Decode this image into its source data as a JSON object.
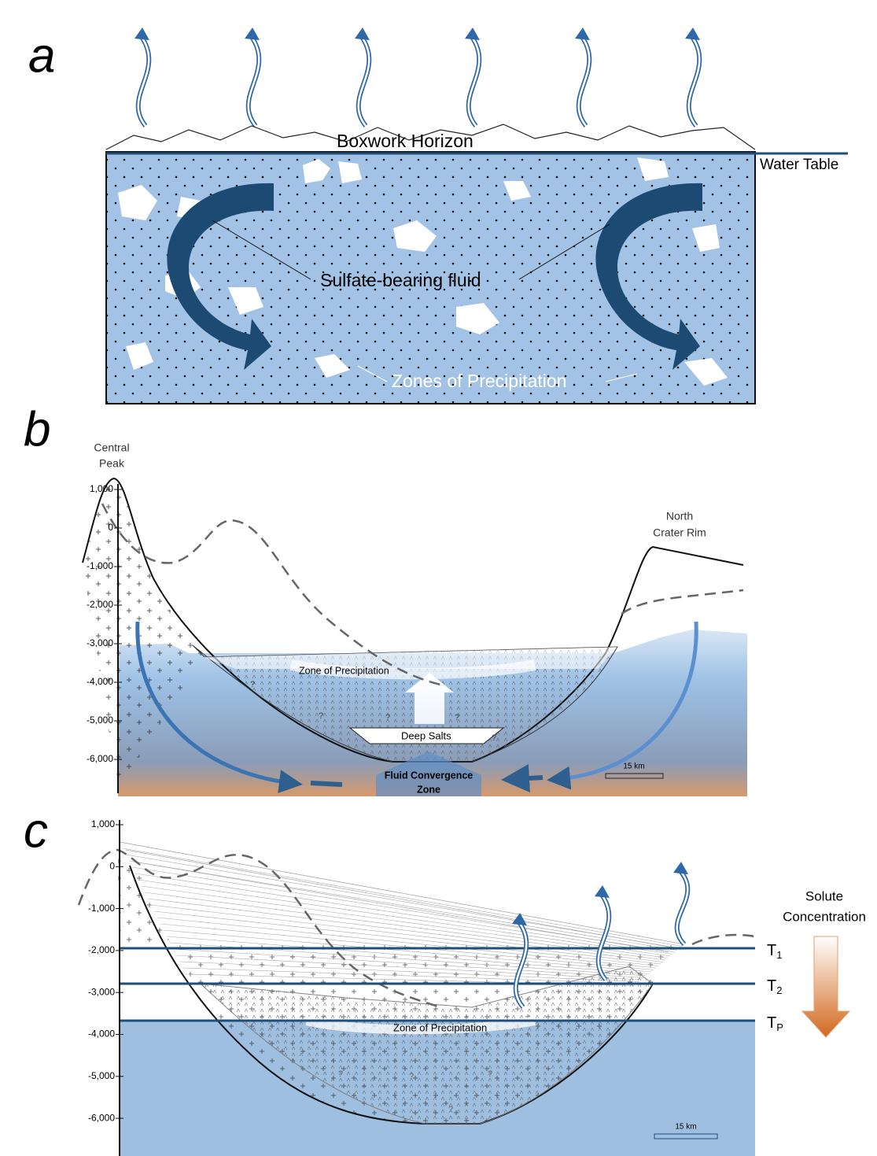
{
  "panel_a": {
    "label": "a",
    "surface_label": "Boxwork Horizon",
    "water_table": "Water Table",
    "fluid_label": "Sulfate-bearing fluid",
    "precipitation_label": "Zones of Precipitation"
  },
  "panel_b": {
    "label": "b",
    "central_peak": [
      "Central",
      "Peak"
    ],
    "north_rim": [
      "North",
      "Crater Rim"
    ],
    "axis_ticks": [
      "1,000",
      "0",
      "-1,000",
      "-2,000",
      "-3,000",
      "-4,000",
      "-5,000",
      "-6,000"
    ],
    "zone": "Zone of Precipitation",
    "deep_salts": "Deep Salts",
    "convergence": [
      "Fluid Convergence",
      "Zone"
    ],
    "scale": "15 km",
    "unknown": "?"
  },
  "panel_c": {
    "label": "c",
    "axis_ticks": [
      "1,000",
      "0",
      "-1,000",
      "-2,000",
      "-3,000",
      "-4,000",
      "-5,000",
      "-6,000"
    ],
    "solute": [
      "Solute",
      "Concentration"
    ],
    "levels": [
      {
        "name": "T",
        "sub": "1"
      },
      {
        "name": "T",
        "sub": "2"
      },
      {
        "name": "T",
        "sub": "P"
      }
    ],
    "zone": "Zone of Precipitation",
    "scale": "15 km",
    "unknown": "?"
  }
}
